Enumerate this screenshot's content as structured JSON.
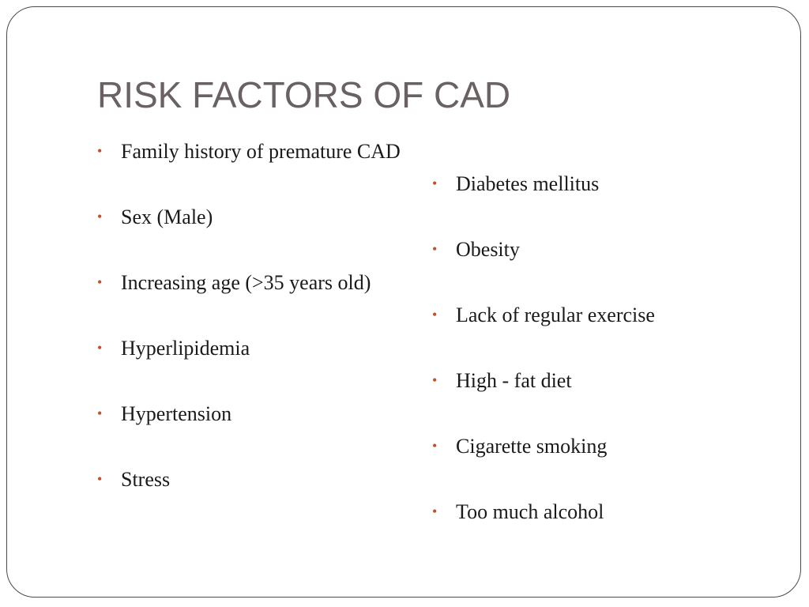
{
  "slide": {
    "title": "RISK FACTORS OF CAD",
    "bullet_glyph": "•",
    "bullet_color": "#c0502b",
    "title_color": "#6a6262",
    "left_column": [
      "Family history of premature CAD",
      "Sex (Male)",
      "Increasing age (>35 years old)",
      "Hyperlipidemia",
      "Hypertension",
      "Stress"
    ],
    "right_column": [
      "Diabetes mellitus",
      "Obesity",
      "Lack of regular exercise",
      "High - fat diet",
      "Cigarette smoking",
      "Too much alcohol"
    ]
  }
}
